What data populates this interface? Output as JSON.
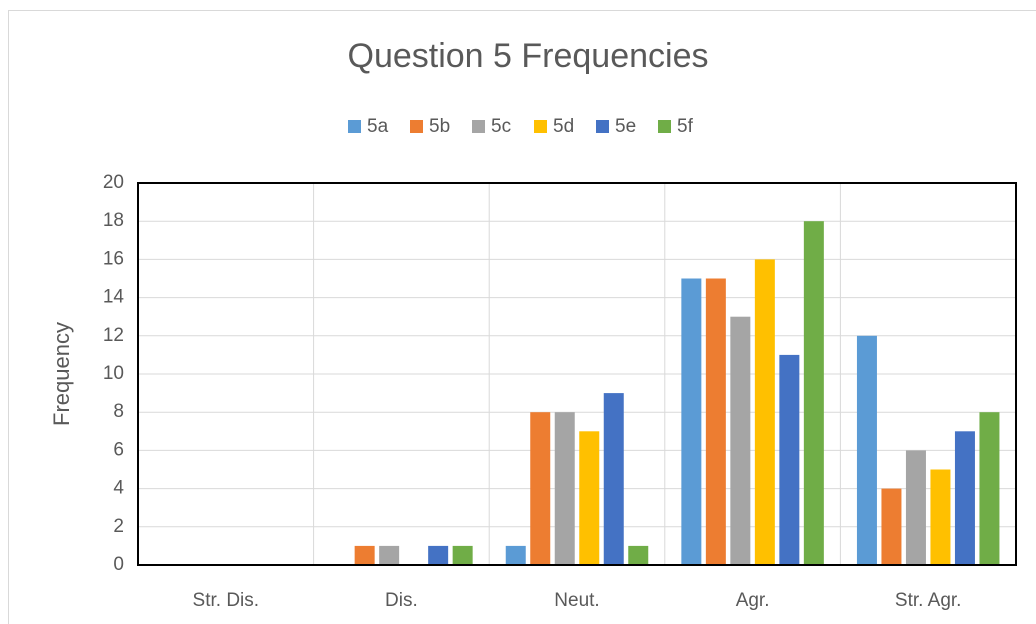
{
  "chart_data": {
    "type": "bar",
    "title": "Question 5 Frequencies",
    "y_label": "Frequency",
    "categories": [
      "Str. Dis.",
      "Dis.",
      "Neut.",
      "Agr.",
      "Str. Agr."
    ],
    "series": [
      {
        "name": "5a",
        "color": "#5b9bd5",
        "values": [
          0,
          0,
          1,
          15,
          12
        ]
      },
      {
        "name": "5b",
        "color": "#ed7d31",
        "values": [
          0,
          1,
          8,
          15,
          4
        ]
      },
      {
        "name": "5c",
        "color": "#a5a5a5",
        "values": [
          0,
          1,
          8,
          13,
          6
        ]
      },
      {
        "name": "5d",
        "color": "#ffc000",
        "values": [
          0,
          0,
          7,
          16,
          5
        ]
      },
      {
        "name": "5e",
        "color": "#4472c4",
        "values": [
          0,
          1,
          9,
          11,
          7
        ]
      },
      {
        "name": "5f",
        "color": "#70ad47",
        "values": [
          0,
          1,
          1,
          18,
          8
        ]
      }
    ],
    "ylim": [
      0,
      20
    ],
    "yticks": [
      0,
      2,
      4,
      6,
      8,
      10,
      12,
      14,
      16,
      18,
      20
    ],
    "grid": true,
    "legend": "top"
  }
}
